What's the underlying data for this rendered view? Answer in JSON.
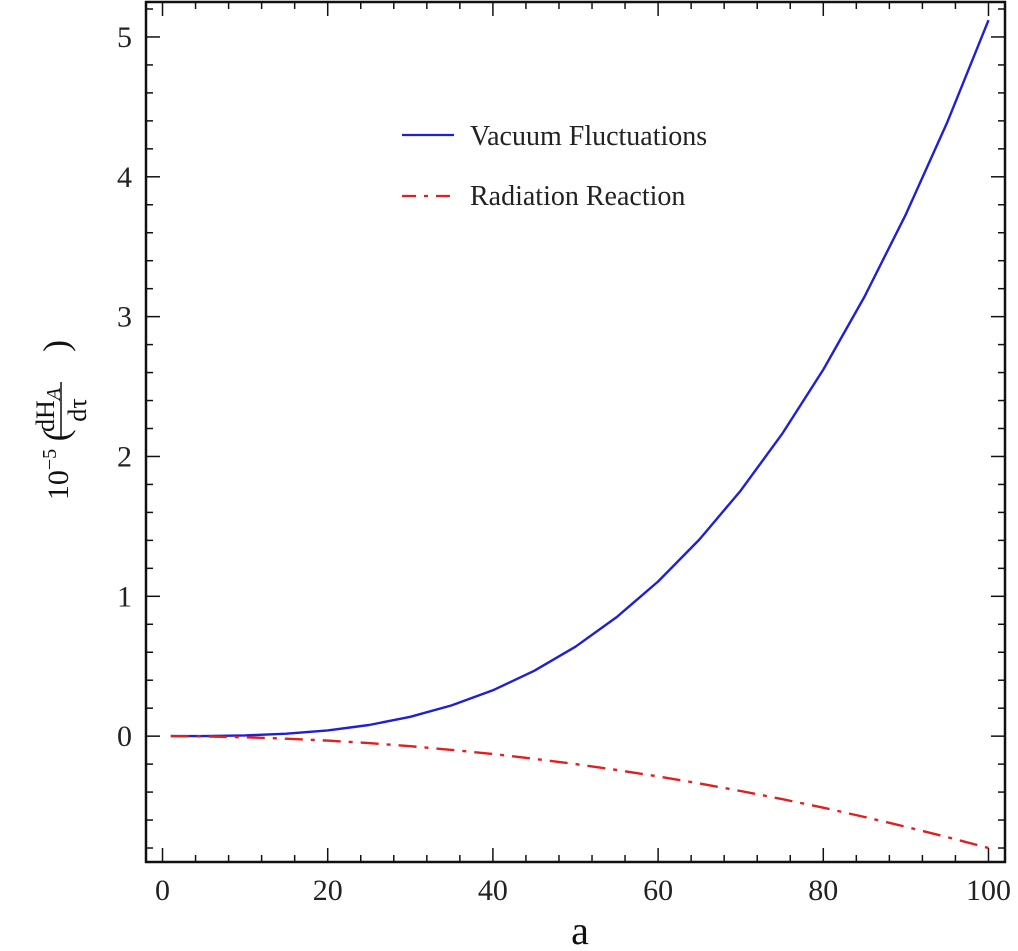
{
  "chart_data": {
    "type": "line",
    "title": "",
    "xlabel": "a",
    "ylabel": {
      "prefix": "10",
      "exponent": "−5",
      "open": "(",
      "numerator": "dH",
      "subscript": "A",
      "denominator": "dτ",
      "close": ")"
    },
    "xlim": [
      -2,
      102
    ],
    "ylim": [
      -0.9,
      5.25
    ],
    "xticks": [
      0,
      20,
      40,
      60,
      80,
      100
    ],
    "yticks": [
      0,
      1,
      2,
      3,
      4,
      5
    ],
    "grid": false,
    "legend_position": "top-center",
    "x": [
      1,
      5,
      10,
      15,
      20,
      25,
      30,
      35,
      40,
      45,
      50,
      55,
      60,
      65,
      70,
      75,
      80,
      85,
      90,
      95,
      100
    ],
    "series": [
      {
        "name": "Vacuum Fluctuations",
        "color": "#1f1fd6",
        "style": "solid",
        "values": [
          0.0,
          0.0006,
          0.0051,
          0.0173,
          0.041,
          0.08,
          0.138,
          0.22,
          0.328,
          0.467,
          0.64,
          0.852,
          1.106,
          1.406,
          1.756,
          2.16,
          2.621,
          3.144,
          3.732,
          4.389,
          5.12
        ]
      },
      {
        "name": "Radiation Reaction",
        "color": "#e02020",
        "style": "dashdot",
        "values": [
          0.0,
          -0.002,
          -0.008,
          -0.018,
          -0.032,
          -0.05,
          -0.072,
          -0.098,
          -0.128,
          -0.162,
          -0.2,
          -0.242,
          -0.288,
          -0.338,
          -0.392,
          -0.45,
          -0.512,
          -0.578,
          -0.648,
          -0.722,
          -0.8
        ]
      }
    ]
  }
}
